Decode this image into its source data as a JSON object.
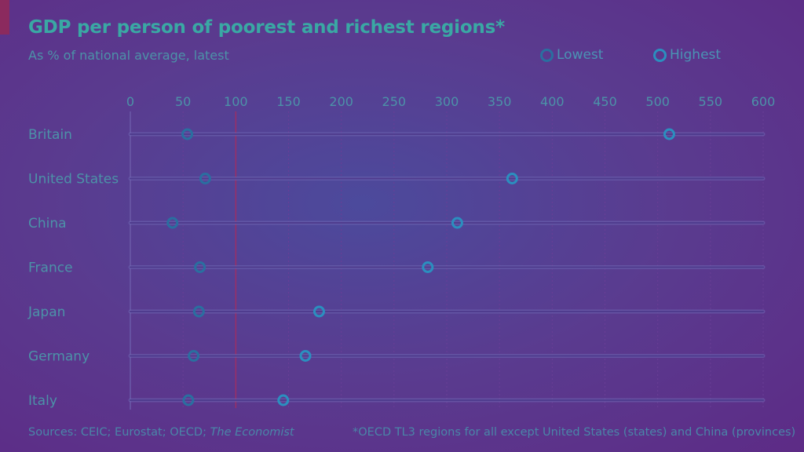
{
  "header": {
    "title": "GDP per person of poorest and richest regions*",
    "subtitle": "As % of national average, latest"
  },
  "legend": {
    "lowest": "Lowest",
    "highest": "Highest"
  },
  "footer": {
    "sources": "Sources: CEIC; Eurostat; OECD; ",
    "sources_italic": "The Economist",
    "note": "*OECD TL3 regions for all except United States (states) and China (provinces)"
  },
  "colors": {
    "background": "#5d2b86",
    "title": "#3aa8a4",
    "text": "#4c92a8",
    "lowest_marker": "#2a6fa0",
    "highest_marker": "#2b8fbf",
    "reference_line": "#9b2f66",
    "grid": "#6a3e96"
  },
  "chart_data": {
    "type": "dot-range",
    "title": "GDP per person of poorest and richest regions*",
    "subtitle": "As % of national average, latest",
    "x_ticks": [
      0,
      50,
      100,
      150,
      200,
      250,
      300,
      350,
      400,
      450,
      500,
      550,
      600
    ],
    "xlim": [
      0,
      600
    ],
    "reference_value": 100,
    "grid": true,
    "legend_position": "top-right",
    "categories": [
      "Britain",
      "United States",
      "China",
      "France",
      "Japan",
      "Germany",
      "Italy"
    ],
    "series": [
      {
        "name": "Lowest",
        "values": [
          54,
          71,
          40,
          66,
          65,
          60,
          55
        ]
      },
      {
        "name": "Highest",
        "values": [
          511,
          362,
          310,
          282,
          179,
          166,
          145
        ]
      }
    ]
  }
}
